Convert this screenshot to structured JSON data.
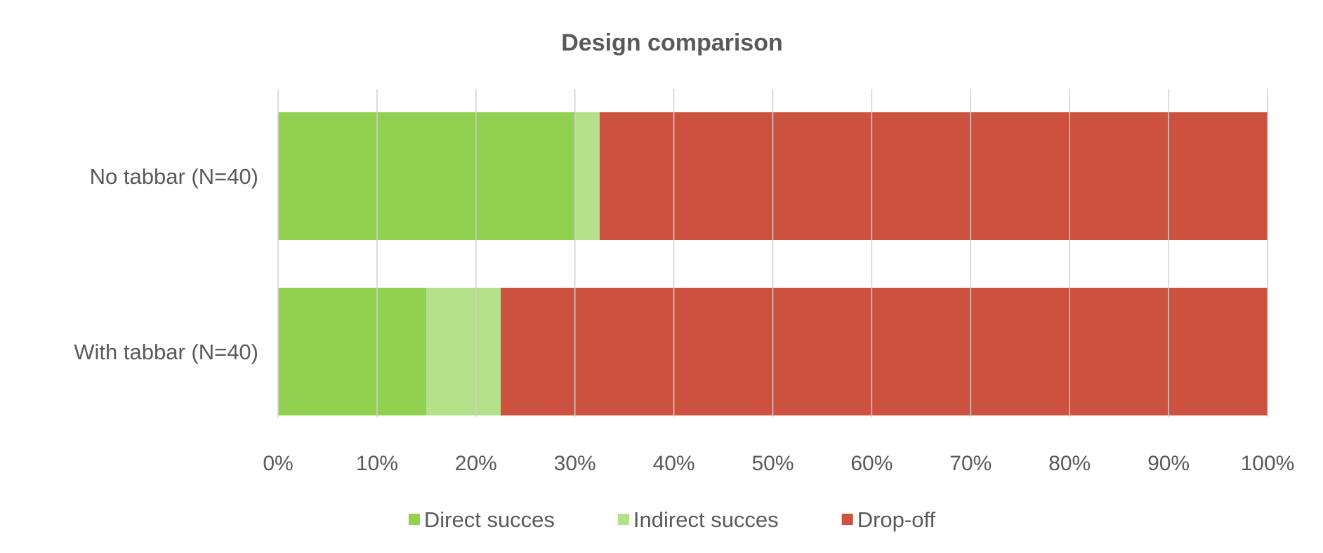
{
  "chart_data": {
    "type": "bar",
    "orientation": "horizontal",
    "stacked": "percent",
    "title": "Design comparison",
    "categories": [
      "No tabbar (N=40)",
      "With tabbar (N=40)"
    ],
    "series": [
      {
        "name": "Direct succes",
        "color": "#92d050",
        "values": [
          30,
          15
        ]
      },
      {
        "name": "Indirect succes",
        "color": "#b5e08a",
        "values": [
          2.5,
          7.5
        ]
      },
      {
        "name": "Drop-off",
        "color": "#cc513f",
        "values": [
          67.5,
          77.5
        ]
      }
    ],
    "xlim": [
      0,
      100
    ],
    "xticks": [
      "0%",
      "10%",
      "20%",
      "30%",
      "40%",
      "50%",
      "60%",
      "70%",
      "80%",
      "90%",
      "100%"
    ],
    "grid": true,
    "legend_position": "bottom"
  }
}
